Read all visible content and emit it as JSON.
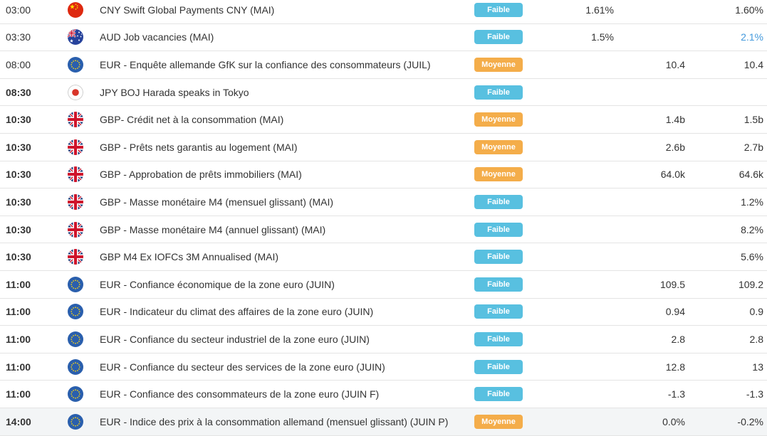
{
  "colors": {
    "text": "#333333",
    "separator": "#e4e4e4",
    "value_link": "#4399dc",
    "row_highlight": "#f3f5f6",
    "badge_faible": "#58c0e0",
    "badge_moyenne": "#f4ad4a"
  },
  "badges": {
    "faible": {
      "label": "Faible",
      "color": "#58c0e0"
    },
    "moyenne": {
      "label": "Moyenne",
      "color": "#f4ad4a"
    }
  },
  "rows": [
    {
      "time": "03:00",
      "bold": false,
      "flag": "china",
      "label": "CNY Swift Global Payments CNY (MAI)",
      "importance": "faible",
      "actual": "1.61%",
      "forecast": "",
      "previous": "1.60%",
      "previous_link": false,
      "highlighted": false
    },
    {
      "time": "03:30",
      "bold": false,
      "flag": "australia",
      "label": "AUD Job vacancies (MAI)",
      "importance": "faible",
      "actual": "1.5%",
      "forecast": "",
      "previous": "2.1%",
      "previous_link": true,
      "highlighted": false
    },
    {
      "time": "08:00",
      "bold": false,
      "flag": "eu",
      "label": "EUR - Enquête allemande GfK sur la confiance des consommateurs (JUIL)",
      "importance": "moyenne",
      "actual": "",
      "forecast": "10.4",
      "previous": "10.4",
      "previous_link": false,
      "highlighted": false
    },
    {
      "time": "08:30",
      "bold": true,
      "flag": "japan",
      "label": "JPY BOJ Harada speaks in Tokyo",
      "importance": "faible",
      "actual": "",
      "forecast": "",
      "previous": "",
      "previous_link": false,
      "highlighted": false
    },
    {
      "time": "10:30",
      "bold": true,
      "flag": "uk",
      "label": "GBP- Crédit net à la consommation (MAI)",
      "importance": "moyenne",
      "actual": "",
      "forecast": "1.4b",
      "previous": "1.5b",
      "previous_link": false,
      "highlighted": false
    },
    {
      "time": "10:30",
      "bold": true,
      "flag": "uk",
      "label": "GBP - Prêts nets garantis au logement (MAI)",
      "importance": "moyenne",
      "actual": "",
      "forecast": "2.6b",
      "previous": "2.7b",
      "previous_link": false,
      "highlighted": false
    },
    {
      "time": "10:30",
      "bold": true,
      "flag": "uk",
      "label": "GBP - Approbation de prêts immobiliers (MAI)",
      "importance": "moyenne",
      "actual": "",
      "forecast": "64.0k",
      "previous": "64.6k",
      "previous_link": false,
      "highlighted": false
    },
    {
      "time": "10:30",
      "bold": true,
      "flag": "uk",
      "label": "GBP - Masse monétaire M4 (mensuel glissant) (MAI)",
      "importance": "faible",
      "actual": "",
      "forecast": "",
      "previous": "1.2%",
      "previous_link": false,
      "highlighted": false
    },
    {
      "time": "10:30",
      "bold": true,
      "flag": "uk",
      "label": "GBP - Masse monétaire M4 (annuel glissant) (MAI)",
      "importance": "faible",
      "actual": "",
      "forecast": "",
      "previous": "8.2%",
      "previous_link": false,
      "highlighted": false
    },
    {
      "time": "10:30",
      "bold": true,
      "flag": "uk",
      "label": "GBP M4 Ex IOFCs 3M Annualised (MAI)",
      "importance": "faible",
      "actual": "",
      "forecast": "",
      "previous": "5.6%",
      "previous_link": false,
      "highlighted": false
    },
    {
      "time": "11:00",
      "bold": true,
      "flag": "eu",
      "label": "EUR - Confiance économique de la zone euro (JUIN)",
      "importance": "faible",
      "actual": "",
      "forecast": "109.5",
      "previous": "109.2",
      "previous_link": false,
      "highlighted": false
    },
    {
      "time": "11:00",
      "bold": true,
      "flag": "eu",
      "label": "EUR - Indicateur du climat des affaires de la zone euro (JUIN)",
      "importance": "faible",
      "actual": "",
      "forecast": "0.94",
      "previous": "0.9",
      "previous_link": false,
      "highlighted": false
    },
    {
      "time": "11:00",
      "bold": true,
      "flag": "eu",
      "label": "EUR - Confiance du secteur industriel de la zone euro (JUIN)",
      "importance": "faible",
      "actual": "",
      "forecast": "2.8",
      "previous": "2.8",
      "previous_link": false,
      "highlighted": false
    },
    {
      "time": "11:00",
      "bold": true,
      "flag": "eu",
      "label": "EUR - Confiance du secteur des services de la zone euro (JUIN)",
      "importance": "faible",
      "actual": "",
      "forecast": "12.8",
      "previous": "13",
      "previous_link": false,
      "highlighted": false
    },
    {
      "time": "11:00",
      "bold": true,
      "flag": "eu",
      "label": "EUR - Confiance des consommateurs de la zone euro (JUIN F)",
      "importance": "faible",
      "actual": "",
      "forecast": "-1.3",
      "previous": "-1.3",
      "previous_link": false,
      "highlighted": false
    },
    {
      "time": "14:00",
      "bold": true,
      "flag": "eu",
      "label": "EUR - Indice des prix à la consommation allemand (mensuel glissant) (JUIN P)",
      "importance": "moyenne",
      "actual": "",
      "forecast": "0.0%",
      "previous": "-0.2%",
      "previous_link": false,
      "highlighted": true
    }
  ]
}
